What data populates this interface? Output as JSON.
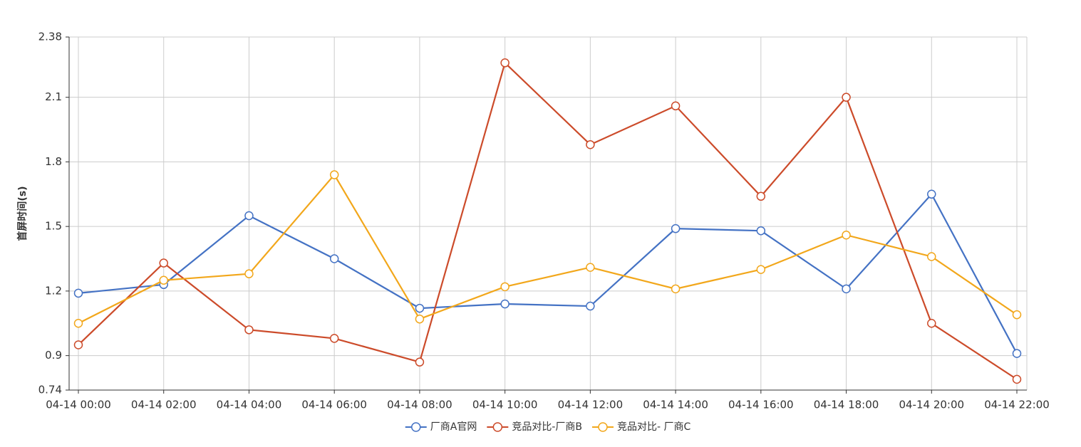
{
  "chart_data": {
    "type": "line",
    "y_label": "首屏时间(s)",
    "categories": [
      "04-14 00:00",
      "04-14 02:00",
      "04-14 04:00",
      "04-14 06:00",
      "04-14 08:00",
      "04-14 10:00",
      "04-14 12:00",
      "04-14 14:00",
      "04-14 16:00",
      "04-14 18:00",
      "04-14 20:00",
      "04-14 22:00"
    ],
    "series": [
      {
        "name": "厂商A官网",
        "color": "#4472c4",
        "values": [
          1.19,
          1.23,
          1.55,
          1.35,
          1.12,
          1.14,
          1.13,
          1.49,
          1.48,
          1.21,
          1.65,
          0.91
        ]
      },
      {
        "name": "竞品对比-厂商B",
        "color": "#cc4b2a",
        "values": [
          0.95,
          1.33,
          1.02,
          0.98,
          0.87,
          2.26,
          1.88,
          2.06,
          1.64,
          2.1,
          1.05,
          0.79
        ]
      },
      {
        "name": "竞品对比- 厂商C",
        "color": "#f2a71b",
        "values": [
          1.05,
          1.25,
          1.28,
          1.74,
          1.07,
          1.22,
          1.31,
          1.21,
          1.3,
          1.46,
          1.36,
          1.09
        ]
      }
    ],
    "ylim": [
      0.74,
      2.38
    ],
    "yticks": [
      0.74,
      0.9,
      1.2,
      1.5,
      1.8,
      2.1,
      2.38
    ],
    "grid": true,
    "legend": "bottom"
  }
}
